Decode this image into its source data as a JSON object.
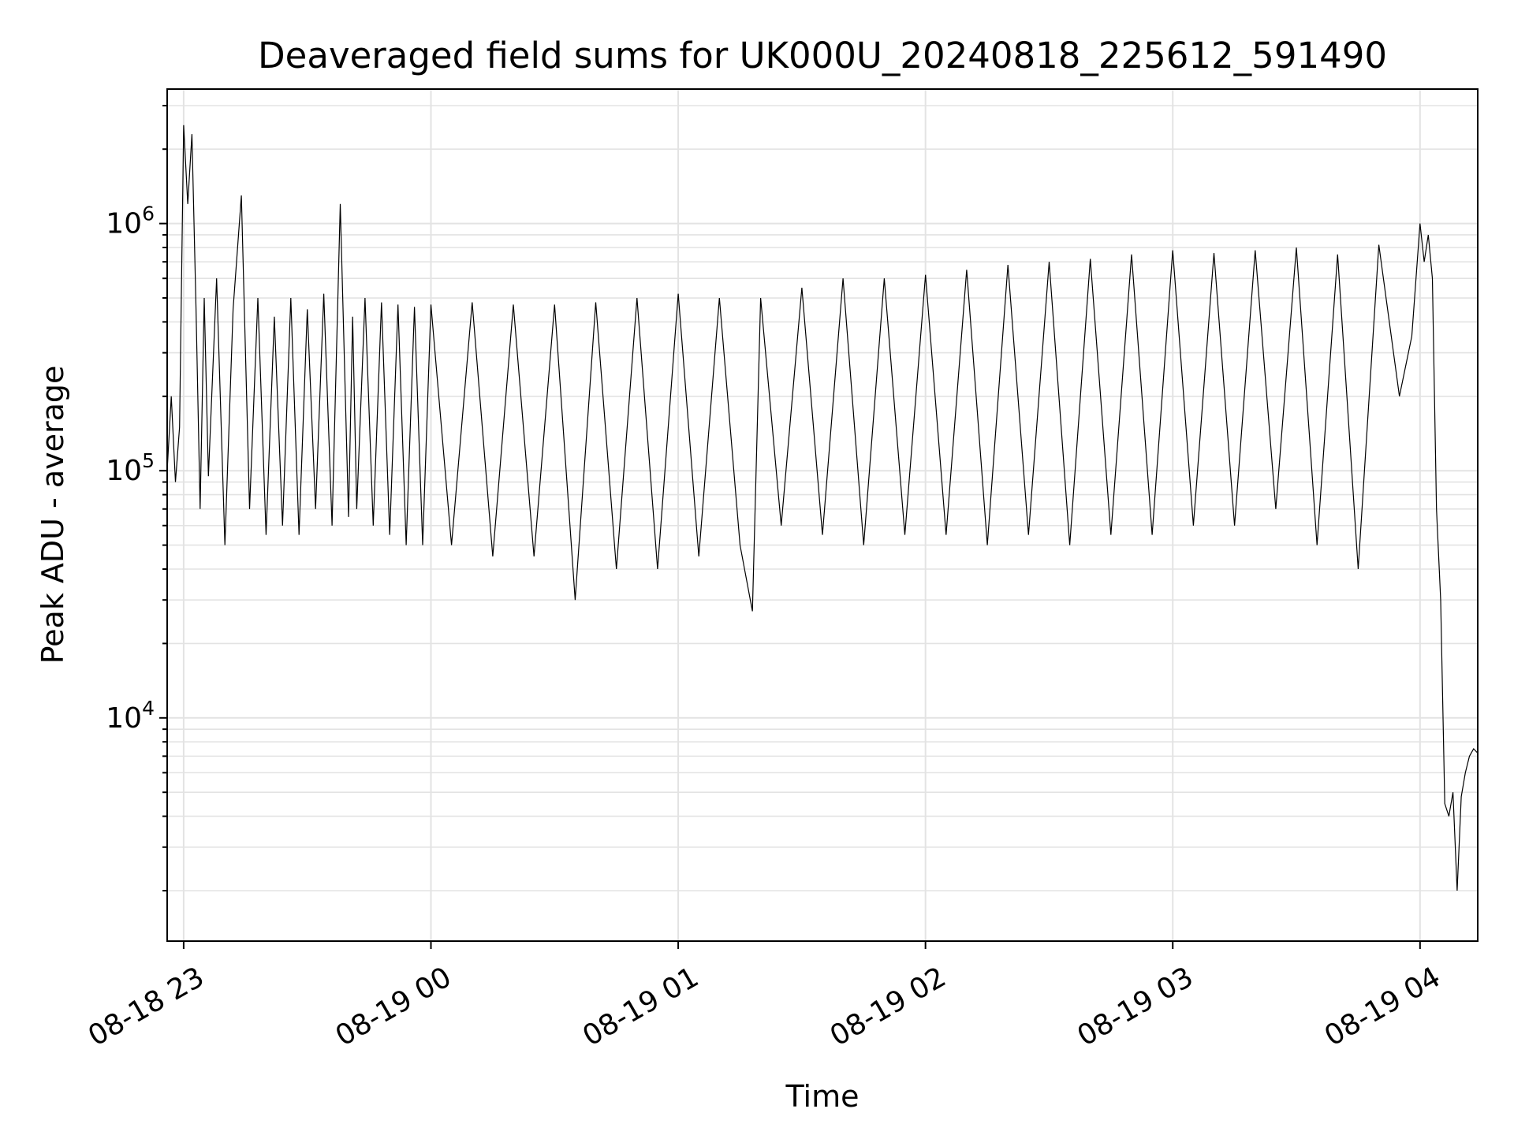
{
  "chart_data": {
    "type": "line",
    "title": "Deaveraged field sums for UK000U_20240818_225612_591490",
    "xlabel": "Time",
    "ylabel": "Peak ADU - average",
    "yscale": "log",
    "grid": true,
    "legend": "none",
    "x_ticks": [
      "08-18 23",
      "08-19 00",
      "08-19 01",
      "08-19 02",
      "08-19 03",
      "08-19 04"
    ],
    "x_tick_dates": [
      "2024-08-18 23:00",
      "2024-08-19 00:00",
      "2024-08-19 01:00",
      "2024-08-19 02:00",
      "2024-08-19 03:00",
      "2024-08-19 04:00"
    ],
    "xlim": [
      "2024-08-18 22:56",
      "2024-08-19 04:14"
    ],
    "y_ticks": [
      {
        "base": "10",
        "exp": "4",
        "value": 10000
      },
      {
        "base": "10",
        "exp": "5",
        "value": 100000
      },
      {
        "base": "10",
        "exp": "6",
        "value": 1000000
      }
    ],
    "ylim": [
      1250,
      3500000
    ],
    "colors": {
      "line": "#000000",
      "grid": "#e3e3e3",
      "axes": "#000000"
    },
    "series": [
      {
        "x": [
          "2024-08-18 22:56",
          "2024-08-18 22:57",
          "2024-08-18 22:58",
          "2024-08-18 22:59",
          "2024-08-18 23:00",
          "2024-08-18 23:01",
          "2024-08-18 23:02",
          "2024-08-18 23:03",
          "2024-08-18 23:04",
          "2024-08-18 23:05",
          "2024-08-18 23:06",
          "2024-08-18 23:08",
          "2024-08-18 23:10",
          "2024-08-18 23:12",
          "2024-08-18 23:14",
          "2024-08-18 23:16",
          "2024-08-18 23:18",
          "2024-08-18 23:20",
          "2024-08-18 23:22",
          "2024-08-18 23:24",
          "2024-08-18 23:26",
          "2024-08-18 23:28",
          "2024-08-18 23:30",
          "2024-08-18 23:32",
          "2024-08-18 23:34",
          "2024-08-18 23:36",
          "2024-08-18 23:38",
          "2024-08-18 23:40",
          "2024-08-18 23:41",
          "2024-08-18 23:42",
          "2024-08-18 23:44",
          "2024-08-18 23:46",
          "2024-08-18 23:48",
          "2024-08-18 23:50",
          "2024-08-18 23:52",
          "2024-08-18 23:54",
          "2024-08-18 23:56",
          "2024-08-18 23:58",
          "2024-08-19 00:00",
          "2024-08-19 00:05",
          "2024-08-19 00:10",
          "2024-08-19 00:15",
          "2024-08-19 00:20",
          "2024-08-19 00:25",
          "2024-08-19 00:30",
          "2024-08-19 00:35",
          "2024-08-19 00:40",
          "2024-08-19 00:45",
          "2024-08-19 00:50",
          "2024-08-19 00:55",
          "2024-08-19 01:00",
          "2024-08-19 01:05",
          "2024-08-19 01:10",
          "2024-08-19 01:15",
          "2024-08-19 01:18",
          "2024-08-19 01:20",
          "2024-08-19 01:25",
          "2024-08-19 01:30",
          "2024-08-19 01:35",
          "2024-08-19 01:40",
          "2024-08-19 01:45",
          "2024-08-19 01:50",
          "2024-08-19 01:55",
          "2024-08-19 02:00",
          "2024-08-19 02:05",
          "2024-08-19 02:10",
          "2024-08-19 02:15",
          "2024-08-19 02:20",
          "2024-08-19 02:25",
          "2024-08-19 02:30",
          "2024-08-19 02:35",
          "2024-08-19 02:40",
          "2024-08-19 02:45",
          "2024-08-19 02:50",
          "2024-08-19 02:55",
          "2024-08-19 03:00",
          "2024-08-19 03:05",
          "2024-08-19 03:10",
          "2024-08-19 03:15",
          "2024-08-19 03:20",
          "2024-08-19 03:25",
          "2024-08-19 03:30",
          "2024-08-19 03:35",
          "2024-08-19 03:40",
          "2024-08-19 03:45",
          "2024-08-19 03:50",
          "2024-08-19 03:55",
          "2024-08-19 03:58",
          "2024-08-19 04:00",
          "2024-08-19 04:01",
          "2024-08-19 04:02",
          "2024-08-19 04:03",
          "2024-08-19 04:04",
          "2024-08-19 04:05",
          "2024-08-19 04:06",
          "2024-08-19 04:07",
          "2024-08-19 04:08",
          "2024-08-19 04:09",
          "2024-08-19 04:10",
          "2024-08-19 04:11",
          "2024-08-19 04:12",
          "2024-08-19 04:13",
          "2024-08-19 04:14"
        ],
        "y": [
          100000,
          200000,
          90000,
          150000,
          2500000,
          1200000,
          2300000,
          450000,
          70000,
          500000,
          95000,
          600000,
          50000,
          450000,
          1300000,
          70000,
          500000,
          55000,
          420000,
          60000,
          500000,
          55000,
          450000,
          70000,
          520000,
          60000,
          1200000,
          65000,
          420000,
          70000,
          500000,
          60000,
          480000,
          55000,
          470000,
          50000,
          460000,
          50000,
          470000,
          50000,
          480000,
          45000,
          470000,
          45000,
          470000,
          30000,
          480000,
          40000,
          500000,
          40000,
          520000,
          45000,
          500000,
          50000,
          27000,
          500000,
          60000,
          550000,
          55000,
          600000,
          50000,
          600000,
          55000,
          620000,
          55000,
          650000,
          50000,
          680000,
          55000,
          700000,
          50000,
          720000,
          55000,
          750000,
          55000,
          780000,
          60000,
          760000,
          60000,
          780000,
          70000,
          800000,
          50000,
          750000,
          40000,
          820000,
          200000,
          350000,
          1000000,
          700000,
          900000,
          600000,
          70000,
          30000,
          4500,
          4000,
          5000,
          2000,
          4800,
          6000,
          7000,
          7500,
          7200
        ]
      }
    ]
  }
}
